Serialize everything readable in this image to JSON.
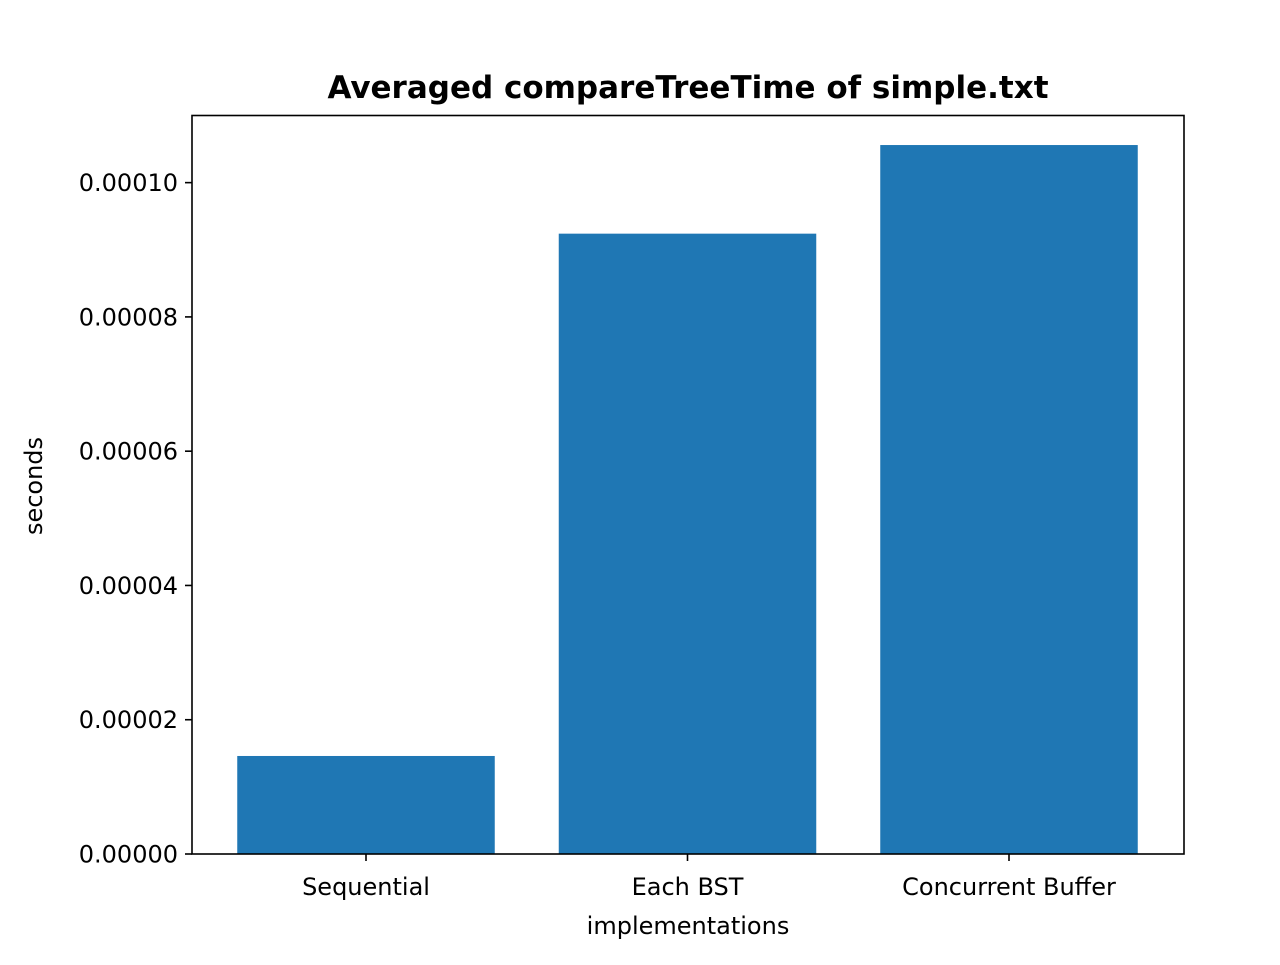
{
  "chart_data": {
    "type": "bar",
    "title": "Averaged compareTreeTime of simple.txt",
    "xlabel": "implementations",
    "ylabel": "seconds",
    "categories": [
      "Sequential",
      "Each BST",
      "Concurrent Buffer"
    ],
    "values": [
      1.46e-05,
      9.24e-05,
      0.0001056
    ],
    "ylim": [
      0,
      0.00011
    ],
    "yticks": [
      "0.00000",
      "0.00002",
      "0.00004",
      "0.00006",
      "0.00008",
      "0.00010"
    ],
    "grid": false,
    "legend": "none",
    "bar_color": "#1f77b4"
  }
}
